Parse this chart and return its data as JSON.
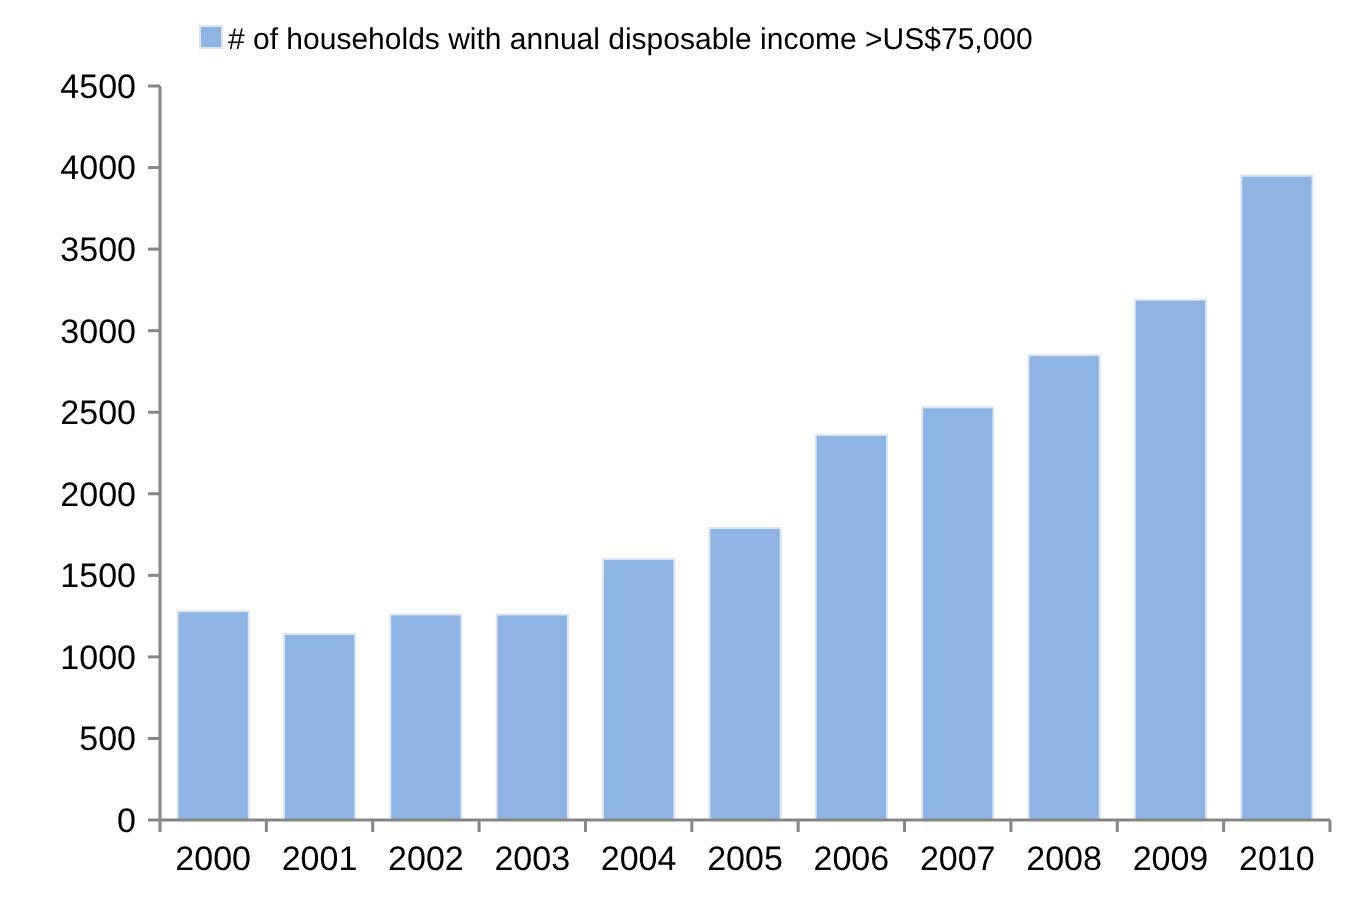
{
  "chart_data": {
    "type": "bar",
    "categories": [
      "2000",
      "2001",
      "2002",
      "2003",
      "2004",
      "2005",
      "2006",
      "2007",
      "2008",
      "2009",
      "2010"
    ],
    "series": [
      {
        "name": "# of households with annual disposable income >US$75,000",
        "color": "#8eb4e3",
        "values": [
          1280,
          1140,
          1260,
          1260,
          1600,
          1790,
          2360,
          2530,
          2850,
          3190,
          3950
        ]
      }
    ],
    "ylim": [
      0,
      4500
    ],
    "yticks": [
      0,
      500,
      1000,
      1500,
      2000,
      2500,
      3000,
      3500,
      4000,
      4500
    ],
    "grid": false,
    "legend": "top"
  }
}
